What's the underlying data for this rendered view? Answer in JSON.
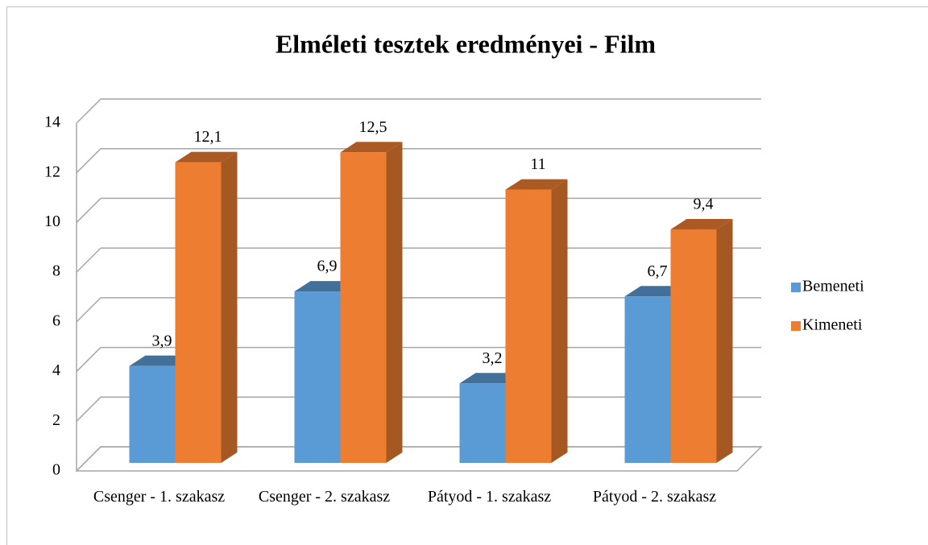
{
  "chart_data": {
    "type": "bar3d",
    "title": "Elméleti tesztek eredményei - Film",
    "categories": [
      "Csenger - 1. szakasz",
      "Csenger - 2. szakasz",
      "Pátyod - 1. szakasz",
      "Pátyod - 2. szakasz"
    ],
    "series": [
      {
        "name": "Bemeneti",
        "color": "#5b9bd5",
        "values": [
          3.9,
          6.9,
          3.2,
          6.7
        ],
        "value_labels": [
          "3,9",
          "6,9",
          "3,2",
          "6,7"
        ]
      },
      {
        "name": "Kimeneti",
        "color": "#ed7d31",
        "values": [
          12.1,
          12.5,
          11,
          9.4
        ],
        "value_labels": [
          "12,1",
          "12,5",
          "11",
          "9,4"
        ]
      }
    ],
    "ylim": [
      0,
      14
    ],
    "yticks": [
      0,
      2,
      4,
      6,
      8,
      10,
      12,
      14
    ],
    "grid": true,
    "legend": "right"
  }
}
